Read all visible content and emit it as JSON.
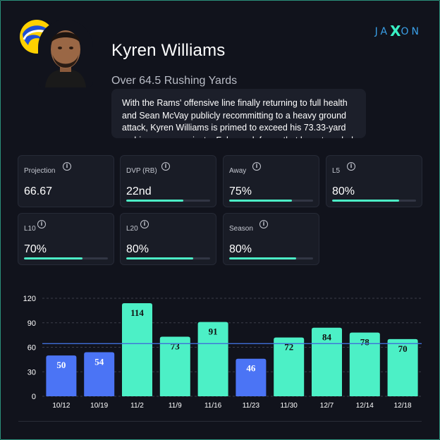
{
  "header": {
    "player_name": "Kyren Williams",
    "prop_line": "Over 64.5 Rushing Yards",
    "analysis": "With the Rams' offensive line finally returning to full health and Sean McVay publicly recommitting to a heavy ground attack, Kyren Williams is primed to exceed his 73.33-yard rushing mean against a Falcons defense that has struggled",
    "team_logo_icon": "rams-horn-logo-icon",
    "brand": {
      "left": "JA",
      "mid": "X",
      "right": "ON"
    }
  },
  "colors": {
    "background": "#11131c",
    "accent_green": "#4cf0c6",
    "miss_blue": "#4b74f5",
    "line_blue": "#3f6fd8"
  },
  "stats": [
    {
      "label": "Projection",
      "value": "66.67",
      "progress": null
    },
    {
      "label": "DVP (RB)",
      "value": "22nd",
      "progress": 0.68
    },
    {
      "label": "Away",
      "value": "75%",
      "progress": 0.75
    },
    {
      "label": "L5",
      "value": "80%",
      "progress": 0.8
    },
    {
      "label": "L10",
      "value": "70%",
      "progress": 0.7
    },
    {
      "label": "L20",
      "value": "80%",
      "progress": 0.8
    },
    {
      "label": "Season",
      "value": "80%",
      "progress": 0.8
    }
  ],
  "chart_data": {
    "type": "bar",
    "categories": [
      "10/12",
      "10/19",
      "11/2",
      "11/9",
      "11/16",
      "11/23",
      "11/30",
      "12/7",
      "12/14",
      "12/18"
    ],
    "values": [
      50,
      54,
      114,
      73,
      91,
      46,
      72,
      84,
      78,
      70
    ],
    "hit": [
      false,
      false,
      true,
      true,
      true,
      false,
      true,
      true,
      true,
      true
    ],
    "threshold": 64.5,
    "yticks": [
      0,
      30,
      60,
      90,
      120
    ],
    "ylim": [
      0,
      120
    ],
    "grid": true,
    "title": "",
    "xlabel": "",
    "ylabel": ""
  }
}
